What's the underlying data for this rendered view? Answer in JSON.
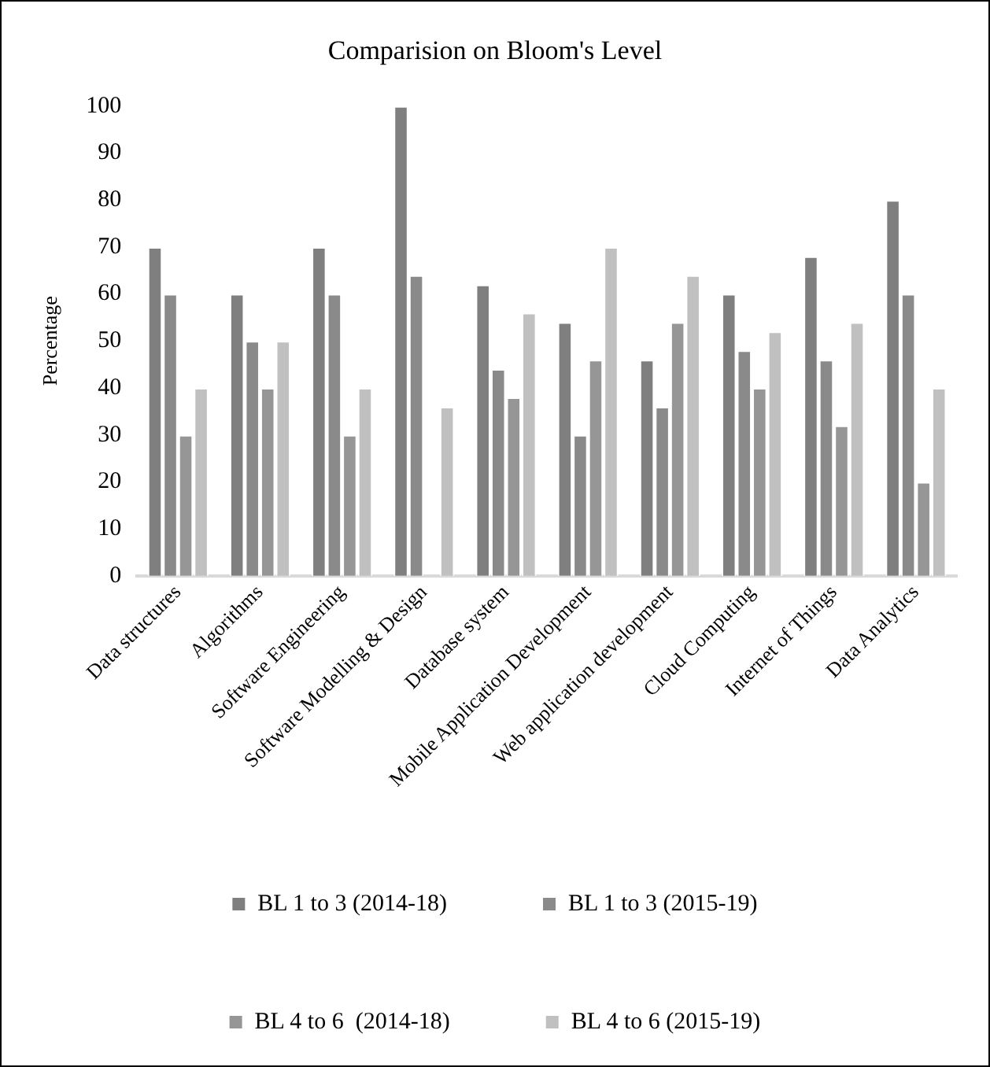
{
  "chart_data": {
    "type": "bar",
    "title": "Comparision on Bloom's Level",
    "ylabel": "Percentage",
    "categories": [
      "Data structures",
      "Algorithms",
      "Software Engineering",
      "Software Modelling & Design",
      "Database system",
      "Mobile Application Development",
      "Web application development",
      "Cloud Computing",
      "Internet of Things",
      "Data Analytics"
    ],
    "series": [
      {
        "name": "BL 1 to 3 (2014-18)",
        "color": "#7f7f7f",
        "values": [
          70,
          60,
          70,
          100,
          62,
          54,
          46,
          60,
          68,
          80
        ]
      },
      {
        "name": "BL 1 to 3 (2015-19)",
        "color": "#8a8a8a",
        "values": [
          60,
          50,
          60,
          64,
          44,
          30,
          36,
          48,
          46,
          60
        ]
      },
      {
        "name": "BL 4 to 6  (2014-18)",
        "color": "#969696",
        "values": [
          30,
          40,
          30,
          0,
          38,
          46,
          54,
          40,
          32,
          20
        ]
      },
      {
        "name": "BL 4 to 6 (2015-19)",
        "color": "#c0c0c0",
        "values": [
          40,
          50,
          40,
          36,
          56,
          70,
          64,
          52,
          54,
          40
        ]
      }
    ],
    "ylim": [
      0,
      100
    ],
    "yticks": [
      0,
      10,
      20,
      30,
      40,
      50,
      60,
      70,
      80,
      90,
      100
    ],
    "grid": false,
    "legend": "bottom"
  }
}
